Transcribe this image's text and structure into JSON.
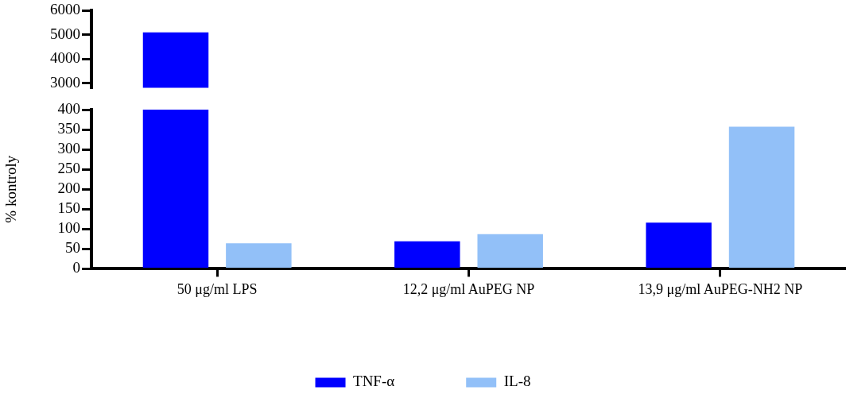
{
  "chart_data": [
    {
      "type": "bar",
      "categories": [
        null
      ],
      "series": [
        {
          "color": "#0000ff",
          "values": [
            5100
          ]
        }
      ],
      "ylim": [
        2800,
        6000
      ],
      "yticks": [
        3000,
        4000,
        5000,
        6000
      ],
      "tick_labels": "y",
      "grid": false,
      "legend": false
    },
    {
      "type": "bar",
      "ylabel": "% kontroly",
      "categories": [
        "50 μg/ml LPS",
        "12,2 μg/ml AuPEG NP",
        "13,9 μg/ml AuPEG-NH2 NP"
      ],
      "series": [
        {
          "name": "TNF-α",
          "color": "#0000ff",
          "values": [
            null,
            69,
            116
          ]
        },
        {
          "name": "IL-8",
          "color": "#92c0f8",
          "values": [
            64,
            87,
            357
          ]
        }
      ],
      "ylim": [
        0,
        400
      ],
      "yticks": [
        0,
        50,
        100,
        150,
        200,
        250,
        300,
        350,
        400
      ],
      "grid": false,
      "legend": "bottom"
    }
  ]
}
